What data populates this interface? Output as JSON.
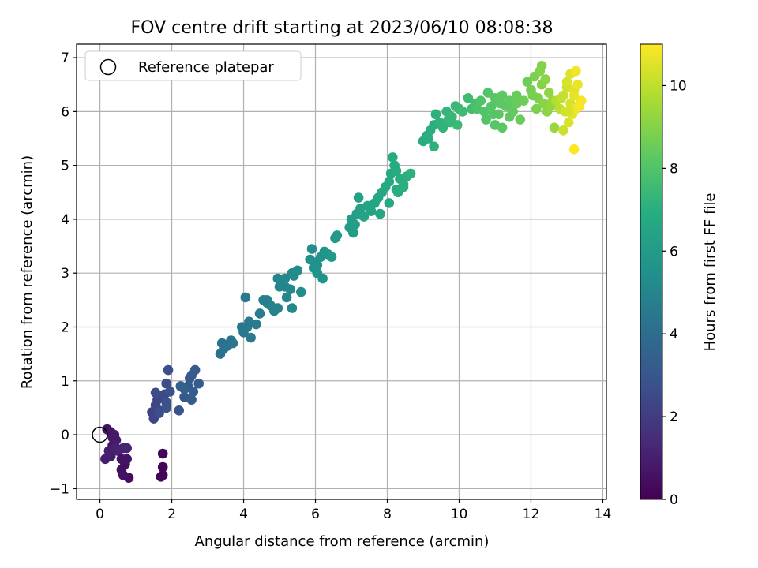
{
  "chart_data": {
    "type": "scatter",
    "title": "FOV centre drift starting at 2023/06/10 08:08:38",
    "xlabel": "Angular distance from reference (arcmin)",
    "ylabel": "Rotation from reference (arcmin)",
    "xlim": [
      -0.65,
      14.1
    ],
    "ylim": [
      -1.2,
      7.25
    ],
    "xticks": [
      "0",
      "2",
      "4",
      "6",
      "8",
      "10",
      "12",
      "14"
    ],
    "yticks": [
      "−1",
      "0",
      "1",
      "2",
      "3",
      "4",
      "5",
      "6",
      "7"
    ],
    "grid": true,
    "legend": {
      "placement": "top-left",
      "entries": [
        "Reference platepar"
      ]
    },
    "reference_point": {
      "x": 0,
      "y": 0,
      "label": "Reference platepar"
    },
    "colorbar": {
      "label": "Hours from first FF file",
      "colormap": "viridis",
      "range": [
        0,
        11
      ],
      "ticks": [
        "0",
        "2",
        "4",
        "6",
        "8",
        "10"
      ]
    },
    "series": [
      {
        "x": [
          0.2,
          0.3,
          0.35,
          0.4,
          0.45,
          0.35,
          0.3,
          0.15,
          0.25,
          0.45,
          0.5,
          0.65,
          0.75,
          0.8,
          0.7,
          0.6,
          0.65,
          0.6,
          0.75,
          1.75,
          1.75,
          1.75,
          1.7,
          1.45,
          1.5,
          1.55,
          1.6,
          1.7,
          1.8,
          1.65,
          1.55,
          1.85,
          1.9,
          1.65,
          1.85,
          1.95,
          1.85,
          2.2,
          2.25,
          2.35,
          2.45,
          2.5,
          2.55,
          2.65,
          2.75,
          2.55,
          2.6,
          2.35,
          2.25,
          3.35,
          3.45,
          3.4,
          3.55,
          3.65,
          3.7,
          3.95,
          4.0,
          4.05,
          4.15,
          4.2,
          4.35,
          4.45,
          4.55,
          4.65,
          4.75,
          4.85,
          4.95,
          5.0,
          5.05,
          5.2,
          5.3,
          5.35,
          5.4,
          5.5,
          5.6,
          4.95,
          5.15,
          5.35,
          4.65,
          4.1,
          5.15,
          5.85,
          5.9,
          5.95,
          6.0,
          6.05,
          6.15,
          6.25,
          6.35,
          6.45,
          6.55,
          6.6,
          6.05,
          6.2,
          6.95,
          7.0,
          7.05,
          7.1,
          7.15,
          7.2,
          7.25,
          7.35,
          7.45,
          7.55,
          7.65,
          7.75,
          7.85,
          7.95,
          8.05,
          8.1,
          8.15,
          8.2,
          8.25,
          8.35,
          8.45,
          8.55,
          8.65,
          8.25,
          8.3,
          8.45,
          8.05,
          7.8,
          9.0,
          9.1,
          9.2,
          9.3,
          9.35,
          9.45,
          9.55,
          9.65,
          9.7,
          9.8,
          9.9,
          10.0,
          9.95,
          10.1,
          10.25,
          10.35,
          9.3,
          9.15,
          9.75,
          10.45,
          10.5,
          10.6,
          10.7,
          10.8,
          10.9,
          11.0,
          11.1,
          11.2,
          11.3,
          11.4,
          11.5,
          11.6,
          11.7,
          11.0,
          11.2,
          11.4,
          11.6,
          10.75,
          11.15,
          10.95,
          11.35,
          11.8,
          11.9,
          12.0,
          12.1,
          12.2,
          12.3,
          12.4,
          12.5,
          12.6,
          12.35,
          12.05,
          12.15,
          12.45,
          12.3,
          12.55,
          12.25,
          12.65,
          12.7,
          12.8,
          12.9,
          13.0,
          13.1,
          13.2,
          13.3,
          13.4,
          12.95,
          13.05,
          13.15,
          13.25,
          12.85,
          13.35,
          13.1,
          13.2,
          13.05,
          12.9,
          13.0,
          13.25,
          13.2
        ],
        "y": [
          0.1,
          0.05,
          -0.05,
          0.0,
          -0.1,
          -0.2,
          -0.4,
          -0.45,
          -0.3,
          -0.25,
          -0.3,
          -0.25,
          -0.25,
          -0.8,
          -0.55,
          -0.65,
          -0.75,
          -0.45,
          -0.45,
          -0.35,
          -0.6,
          -0.75,
          -0.78,
          0.42,
          0.3,
          0.55,
          0.65,
          0.72,
          0.75,
          0.45,
          0.78,
          0.95,
          1.2,
          0.4,
          0.6,
          0.8,
          0.5,
          0.45,
          0.9,
          0.7,
          0.9,
          1.05,
          1.1,
          1.2,
          0.95,
          0.65,
          0.8,
          0.85,
          0.9,
          1.5,
          1.6,
          1.7,
          1.65,
          1.75,
          1.7,
          2.0,
          1.9,
          2.55,
          2.1,
          1.8,
          2.05,
          2.25,
          2.5,
          2.45,
          2.4,
          2.3,
          2.9,
          2.75,
          2.85,
          2.55,
          2.7,
          3.0,
          2.95,
          3.05,
          2.65,
          2.35,
          2.75,
          2.35,
          2.5,
          2.0,
          2.9,
          3.25,
          3.45,
          3.1,
          3.2,
          3.0,
          3.3,
          3.4,
          3.35,
          3.3,
          3.65,
          3.7,
          3.15,
          2.9,
          3.85,
          4.0,
          3.75,
          3.9,
          4.1,
          4.4,
          4.2,
          4.05,
          4.25,
          4.15,
          4.3,
          4.4,
          4.5,
          4.6,
          4.7,
          4.85,
          5.15,
          5.0,
          4.9,
          4.75,
          4.65,
          4.8,
          4.85,
          4.55,
          4.5,
          4.6,
          4.3,
          4.1,
          5.45,
          5.55,
          5.65,
          5.75,
          5.95,
          5.8,
          5.7,
          6.0,
          5.85,
          5.9,
          6.1,
          6.05,
          5.75,
          6.0,
          6.25,
          6.05,
          5.35,
          5.5,
          5.8,
          6.15,
          6.05,
          6.2,
          6.0,
          6.35,
          6.1,
          6.25,
          5.95,
          6.3,
          6.1,
          6.2,
          6.0,
          6.15,
          5.85,
          5.75,
          5.7,
          5.9,
          6.3,
          5.85,
          6.15,
          5.95,
          6.1,
          6.2,
          6.55,
          6.4,
          6.65,
          6.25,
          6.5,
          6.6,
          6.35,
          6.2,
          6.15,
          6.3,
          6.05,
          6.0,
          6.85,
          6.1,
          6.75,
          5.7,
          6.2,
          6.05,
          6.3,
          6.45,
          6.15,
          6.4,
          6.5,
          6.2,
          6.0,
          5.8,
          5.95,
          6.05,
          6.25,
          6.1,
          6.7,
          6.3,
          6.0,
          5.65,
          6.55,
          6.75,
          5.3
        ],
        "c": [
          0.6,
          0.65,
          0.7,
          0.75,
          0.8,
          0.85,
          0.9,
          0.95,
          1.0,
          1.05,
          1.1,
          1.15,
          1.2,
          0.4,
          0.5,
          0.45,
          0.55,
          0.6,
          0.65,
          0.15,
          0.1,
          0.05,
          0.08,
          2.2,
          2.25,
          2.3,
          2.35,
          2.4,
          2.45,
          2.5,
          2.55,
          2.6,
          2.65,
          2.7,
          2.75,
          2.8,
          2.85,
          2.9,
          2.95,
          3.0,
          3.05,
          3.1,
          3.15,
          3.2,
          3.25,
          3.3,
          3.35,
          3.4,
          3.45,
          4.1,
          4.15,
          4.2,
          4.25,
          4.3,
          4.35,
          4.4,
          4.45,
          4.5,
          4.55,
          4.6,
          4.65,
          4.7,
          4.75,
          4.8,
          4.85,
          4.9,
          4.95,
          5.0,
          5.05,
          5.1,
          5.15,
          5.2,
          5.25,
          5.3,
          5.35,
          4.9,
          5.0,
          5.1,
          4.8,
          4.5,
          5.05,
          5.4,
          5.45,
          5.5,
          5.55,
          5.6,
          5.65,
          5.7,
          5.75,
          5.8,
          5.85,
          5.9,
          5.5,
          5.6,
          6.0,
          6.05,
          6.1,
          6.15,
          6.2,
          6.25,
          6.3,
          6.35,
          6.4,
          6.45,
          6.5,
          6.55,
          6.6,
          6.65,
          6.7,
          6.75,
          6.8,
          6.85,
          6.9,
          6.95,
          7.0,
          7.05,
          7.1,
          6.9,
          6.95,
          7.0,
          6.7,
          6.55,
          6.9,
          6.95,
          7.0,
          7.05,
          7.1,
          7.15,
          7.2,
          7.25,
          7.3,
          7.35,
          7.4,
          7.45,
          7.5,
          7.55,
          7.6,
          7.65,
          7.1,
          7.0,
          7.35,
          7.7,
          7.9,
          7.95,
          8.0,
          8.05,
          8.1,
          8.15,
          8.2,
          8.25,
          8.3,
          8.35,
          8.4,
          8.45,
          8.5,
          8.1,
          8.2,
          8.3,
          8.45,
          8.0,
          8.2,
          8.1,
          8.3,
          8.6,
          8.6,
          8.7,
          8.8,
          8.9,
          9.0,
          9.1,
          9.2,
          9.3,
          9.05,
          8.75,
          8.85,
          9.15,
          8.95,
          9.25,
          8.95,
          9.35,
          9.8,
          9.95,
          10.1,
          10.25,
          10.4,
          10.55,
          10.7,
          10.85,
          10.3,
          10.45,
          10.6,
          10.75,
          10.05,
          10.9,
          10.5,
          10.65,
          10.35,
          10.2,
          10.4,
          10.8,
          11.0
        ]
      }
    ]
  }
}
